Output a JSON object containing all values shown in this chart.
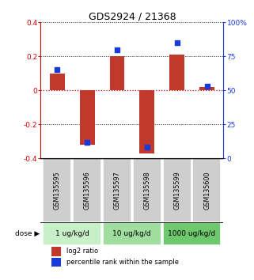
{
  "title": "GDS2924 / 21368",
  "samples": [
    "GSM135595",
    "GSM135596",
    "GSM135597",
    "GSM135598",
    "GSM135599",
    "GSM135600"
  ],
  "log2_ratio": [
    0.1,
    -0.32,
    0.2,
    -0.37,
    0.21,
    0.02
  ],
  "percentile_rank": [
    65,
    12,
    80,
    8,
    85,
    53
  ],
  "ylim_left": [
    -0.4,
    0.4
  ],
  "ylim_right": [
    0,
    100
  ],
  "yticks_left": [
    -0.4,
    -0.2,
    0.0,
    0.2,
    0.4
  ],
  "yticks_right": [
    0,
    25,
    50,
    75,
    100
  ],
  "ytick_labels_left": [
    "-0.4",
    "-0.2",
    "0",
    "0.2",
    "0.4"
  ],
  "ytick_labels_right": [
    "0",
    "25",
    "50",
    "75",
    "100%"
  ],
  "dose_groups": [
    {
      "label": "1 ug/kg/d",
      "indices": [
        0,
        1
      ],
      "color": "#c8f0c8"
    },
    {
      "label": "10 ug/kg/d",
      "indices": [
        2,
        3
      ],
      "color": "#a0dea0"
    },
    {
      "label": "1000 ug/kg/d",
      "indices": [
        4,
        5
      ],
      "color": "#6ec86e"
    }
  ],
  "bar_color": "#c0392b",
  "dot_color": "#1a3adb",
  "sample_bg_color": "#cecece",
  "bar_width": 0.5,
  "dot_size": 22,
  "hline_color_zero": "#cc0000",
  "hline_color_grid": "#555555",
  "legend_red_label": "log2 ratio",
  "legend_blue_label": "percentile rank within the sample",
  "dose_label": "dose",
  "left_axis_color": "#cc0000",
  "right_axis_color": "#1a3adb"
}
